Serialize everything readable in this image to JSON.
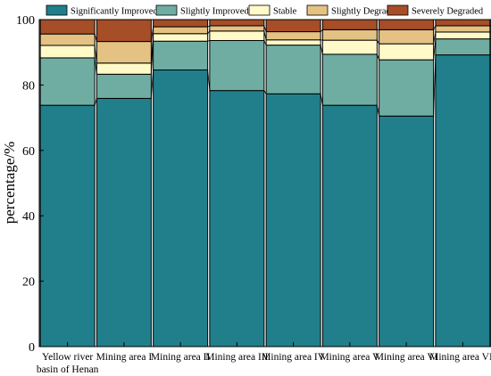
{
  "chart_data": {
    "type": "bar",
    "stacked": true,
    "categories": [
      "Yellow river basin of Henan",
      "Mining area I",
      "Mining area II",
      "Mining area III",
      "Mining area IV",
      "Mining area V",
      "Mining area VI",
      "Mining area VII"
    ],
    "category_lines": [
      [
        "Yellow river",
        "basin of Henan"
      ],
      [
        "Mining area I"
      ],
      [
        "Mining area II"
      ],
      [
        "Mining area III"
      ],
      [
        "Mining area IV"
      ],
      [
        "Mining area V"
      ],
      [
        "Mining area VI"
      ],
      [
        "Mining area VII"
      ]
    ],
    "series": [
      {
        "name": "Significantly Improved",
        "color": "#217f8c",
        "values": [
          73.8,
          75.9,
          84.6,
          78.3,
          77.3,
          73.8,
          70.5,
          89.2
        ]
      },
      {
        "name": "Slightly Improved",
        "color": "#6fada2",
        "values": [
          14.5,
          7.4,
          8.8,
          15.3,
          14.9,
          15.6,
          17.2,
          4.9
        ]
      },
      {
        "name": "Stable",
        "color": "#fffac8",
        "values": [
          3.8,
          3.4,
          2.3,
          2.9,
          1.6,
          4.3,
          4.9,
          2.1
        ]
      },
      {
        "name": "Slightly Degraded",
        "color": "#e3c283",
        "values": [
          3.5,
          6.6,
          2.1,
          1.6,
          2.5,
          3.2,
          4.3,
          1.9
        ]
      },
      {
        "name": "Severely Degraded",
        "color": "#a54e27",
        "values": [
          4.4,
          6.7,
          2.2,
          1.9,
          3.7,
          3.1,
          3.1,
          1.9
        ]
      }
    ],
    "ylabel": "percentage/%",
    "xlabel": "",
    "ylim": [
      0,
      100
    ],
    "yticks": [
      0,
      20,
      40,
      60,
      80,
      100
    ],
    "legend_position": "top",
    "connector_lines": true,
    "grid": false
  }
}
